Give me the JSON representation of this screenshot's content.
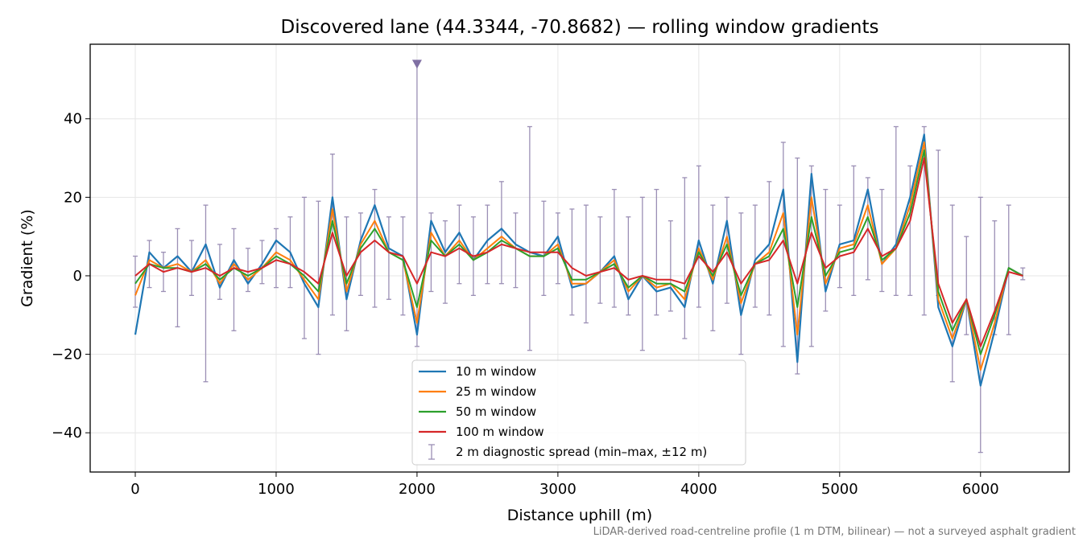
{
  "chart_data": {
    "type": "line",
    "title": "Discovered lane (44.3344, -70.8682) — rolling window gradients",
    "xlabel": "Distance uphill (m)",
    "ylabel": "Gradient (%)",
    "xlim": [
      -320,
      6630
    ],
    "ylim": [
      -50,
      59
    ],
    "xticks": [
      0,
      1000,
      2000,
      3000,
      4000,
      5000,
      6000
    ],
    "xtick_labels": [
      "0",
      "1000",
      "2000",
      "3000",
      "4000",
      "5000",
      "6000"
    ],
    "yticks": [
      -40,
      -20,
      0,
      20,
      40
    ],
    "ytick_labels": [
      "−40",
      "−20",
      "0",
      "20",
      "40"
    ],
    "grid": true,
    "legend_position": "lower-center",
    "footnote": "LiDAR-derived road-centreline profile (1 m DTM, bilinear) — not a surveyed asphalt gradient",
    "marker": {
      "x": 2000,
      "y": 54
    },
    "series": [
      {
        "name": "10 m window",
        "color": "#1f77b4",
        "x": [
          0,
          100,
          200,
          300,
          400,
          500,
          600,
          700,
          800,
          900,
          1000,
          1100,
          1200,
          1300,
          1400,
          1500,
          1600,
          1700,
          1800,
          1900,
          2000,
          2100,
          2200,
          2300,
          2400,
          2500,
          2600,
          2700,
          2800,
          2900,
          3000,
          3100,
          3200,
          3300,
          3400,
          3500,
          3600,
          3700,
          3800,
          3900,
          4000,
          4100,
          4200,
          4300,
          4400,
          4500,
          4600,
          4700,
          4800,
          4900,
          5000,
          5100,
          5200,
          5300,
          5400,
          5500,
          5600,
          5700,
          5800,
          5900,
          6000,
          6100,
          6200,
          6300
        ],
        "y": [
          -15,
          6,
          2,
          5,
          1,
          8,
          -3,
          4,
          -2,
          3,
          9,
          6,
          -2,
          -8,
          20,
          -6,
          9,
          18,
          7,
          5,
          -15,
          14,
          6,
          11,
          4,
          9,
          12,
          8,
          6,
          5,
          10,
          -3,
          -2,
          1,
          5,
          -6,
          0,
          -4,
          -3,
          -8,
          9,
          -2,
          14,
          -10,
          4,
          8,
          22,
          -22,
          26,
          -4,
          8,
          9,
          22,
          3,
          8,
          20,
          36,
          -8,
          -18,
          -6,
          -28,
          -14,
          2,
          0
        ]
      },
      {
        "name": "25 m window",
        "color": "#ff7f0e",
        "x": [
          0,
          100,
          200,
          300,
          400,
          500,
          600,
          700,
          800,
          900,
          1000,
          1100,
          1200,
          1300,
          1400,
          1500,
          1600,
          1700,
          1800,
          1900,
          2000,
          2100,
          2200,
          2300,
          2400,
          2500,
          2600,
          2700,
          2800,
          2900,
          3000,
          3100,
          3200,
          3300,
          3400,
          3500,
          3600,
          3700,
          3800,
          3900,
          4000,
          4100,
          4200,
          4300,
          4400,
          4500,
          4600,
          4700,
          4800,
          4900,
          5000,
          5100,
          5200,
          5300,
          5400,
          5500,
          5600,
          5700,
          5800,
          5900,
          6000,
          6100,
          6200,
          6300
        ],
        "y": [
          -5,
          4,
          2,
          3,
          1,
          4,
          -2,
          3,
          -1,
          2,
          6,
          4,
          -1,
          -6,
          17,
          -4,
          8,
          14,
          6,
          4,
          -12,
          11,
          5,
          9,
          4,
          7,
          10,
          7,
          5,
          5,
          8,
          -2,
          -2,
          1,
          4,
          -4,
          0,
          -3,
          -2,
          -6,
          7,
          -1,
          10,
          -7,
          3,
          6,
          16,
          -15,
          20,
          -2,
          7,
          8,
          18,
          3,
          7,
          18,
          34,
          -6,
          -16,
          -6,
          -24,
          -12,
          2,
          0
        ]
      },
      {
        "name": "50 m window",
        "color": "#2ca02c",
        "x": [
          0,
          100,
          200,
          300,
          400,
          500,
          600,
          700,
          800,
          900,
          1000,
          1100,
          1200,
          1300,
          1400,
          1500,
          1600,
          1700,
          1800,
          1900,
          2000,
          2100,
          2200,
          2300,
          2400,
          2500,
          2600,
          2700,
          2800,
          2900,
          3000,
          3100,
          3200,
          3300,
          3400,
          3500,
          3600,
          3700,
          3800,
          3900,
          4000,
          4100,
          4200,
          4300,
          4400,
          4500,
          4600,
          4700,
          4800,
          4900,
          5000,
          5100,
          5200,
          5300,
          5400,
          5500,
          5600,
          5700,
          5800,
          5900,
          6000,
          6100,
          6200,
          6300
        ],
        "y": [
          -2,
          3,
          2,
          2,
          1,
          3,
          -1,
          2,
          0,
          2,
          5,
          3,
          0,
          -4,
          14,
          -2,
          7,
          12,
          6,
          4,
          -8,
          9,
          5,
          8,
          4,
          6,
          9,
          7,
          5,
          5,
          7,
          -1,
          -1,
          1,
          3,
          -3,
          0,
          -2,
          -2,
          -4,
          6,
          0,
          8,
          -5,
          3,
          5,
          12,
          -8,
          15,
          0,
          6,
          7,
          15,
          4,
          7,
          16,
          32,
          -4,
          -14,
          -6,
          -20,
          -10,
          2,
          0
        ]
      },
      {
        "name": "100 m window",
        "color": "#d62728",
        "x": [
          0,
          100,
          200,
          300,
          400,
          500,
          600,
          700,
          800,
          900,
          1000,
          1100,
          1200,
          1300,
          1400,
          1500,
          1600,
          1700,
          1800,
          1900,
          2000,
          2100,
          2200,
          2300,
          2400,
          2500,
          2600,
          2700,
          2800,
          2900,
          3000,
          3100,
          3200,
          3300,
          3400,
          3500,
          3600,
          3700,
          3800,
          3900,
          4000,
          4100,
          4200,
          4300,
          4400,
          4500,
          4600,
          4700,
          4800,
          4900,
          5000,
          5100,
          5200,
          5300,
          5400,
          5500,
          5600,
          5700,
          5800,
          5900,
          6000,
          6100,
          6200,
          6300
        ],
        "y": [
          0,
          3,
          1,
          2,
          1,
          2,
          0,
          2,
          1,
          2,
          4,
          3,
          1,
          -2,
          11,
          0,
          6,
          9,
          6,
          5,
          -2,
          6,
          5,
          7,
          5,
          6,
          8,
          7,
          6,
          6,
          6,
          2,
          0,
          1,
          2,
          -1,
          0,
          -1,
          -1,
          -2,
          5,
          1,
          6,
          -2,
          3,
          4,
          9,
          -2,
          11,
          2,
          5,
          6,
          12,
          5,
          7,
          14,
          30,
          -2,
          -12,
          -6,
          -18,
          -9,
          1,
          0
        ]
      },
      {
        "name": "2 m diagnostic spread (min–max, ±12 m)",
        "color": "#9b8fb5",
        "type": "errorbar",
        "x": [
          0,
          100,
          200,
          300,
          400,
          500,
          600,
          700,
          800,
          900,
          1000,
          1100,
          1200,
          1300,
          1400,
          1500,
          1600,
          1700,
          1800,
          1900,
          2000,
          2100,
          2200,
          2300,
          2400,
          2500,
          2600,
          2700,
          2800,
          2900,
          3000,
          3100,
          3200,
          3300,
          3400,
          3500,
          3600,
          3700,
          3800,
          3900,
          4000,
          4100,
          4200,
          4300,
          4400,
          4500,
          4600,
          4700,
          4800,
          4900,
          5000,
          5100,
          5200,
          5300,
          5400,
          5500,
          5600,
          5700,
          5800,
          5900,
          6000,
          6100,
          6200,
          6300
        ],
        "low": [
          -8,
          -3,
          -4,
          -13,
          -5,
          -27,
          -6,
          -14,
          -4,
          -2,
          -3,
          -3,
          -16,
          -20,
          -10,
          -14,
          -5,
          -8,
          -6,
          -10,
          -18,
          -4,
          -7,
          -2,
          -5,
          -2,
          -2,
          -3,
          -19,
          -5,
          -2,
          -10,
          -12,
          -7,
          -8,
          -10,
          -19,
          -10,
          -9,
          -16,
          -8,
          -14,
          -7,
          -20,
          -8,
          -10,
          -18,
          -25,
          -18,
          -9,
          -3,
          -5,
          -1,
          -4,
          -5,
          -5,
          -10,
          -5,
          -27,
          -15,
          -45,
          -15,
          -15,
          -1
        ],
        "high": [
          5,
          9,
          6,
          12,
          9,
          18,
          8,
          12,
          7,
          9,
          12,
          15,
          20,
          19,
          31,
          15,
          16,
          22,
          15,
          15,
          54,
          16,
          14,
          18,
          15,
          18,
          24,
          16,
          38,
          19,
          16,
          17,
          18,
          15,
          22,
          15,
          20,
          22,
          14,
          25,
          28,
          18,
          20,
          16,
          18,
          24,
          34,
          30,
          28,
          22,
          18,
          28,
          25,
          22,
          38,
          28,
          38,
          32,
          18,
          10,
          20,
          14,
          18,
          2
        ]
      }
    ]
  }
}
